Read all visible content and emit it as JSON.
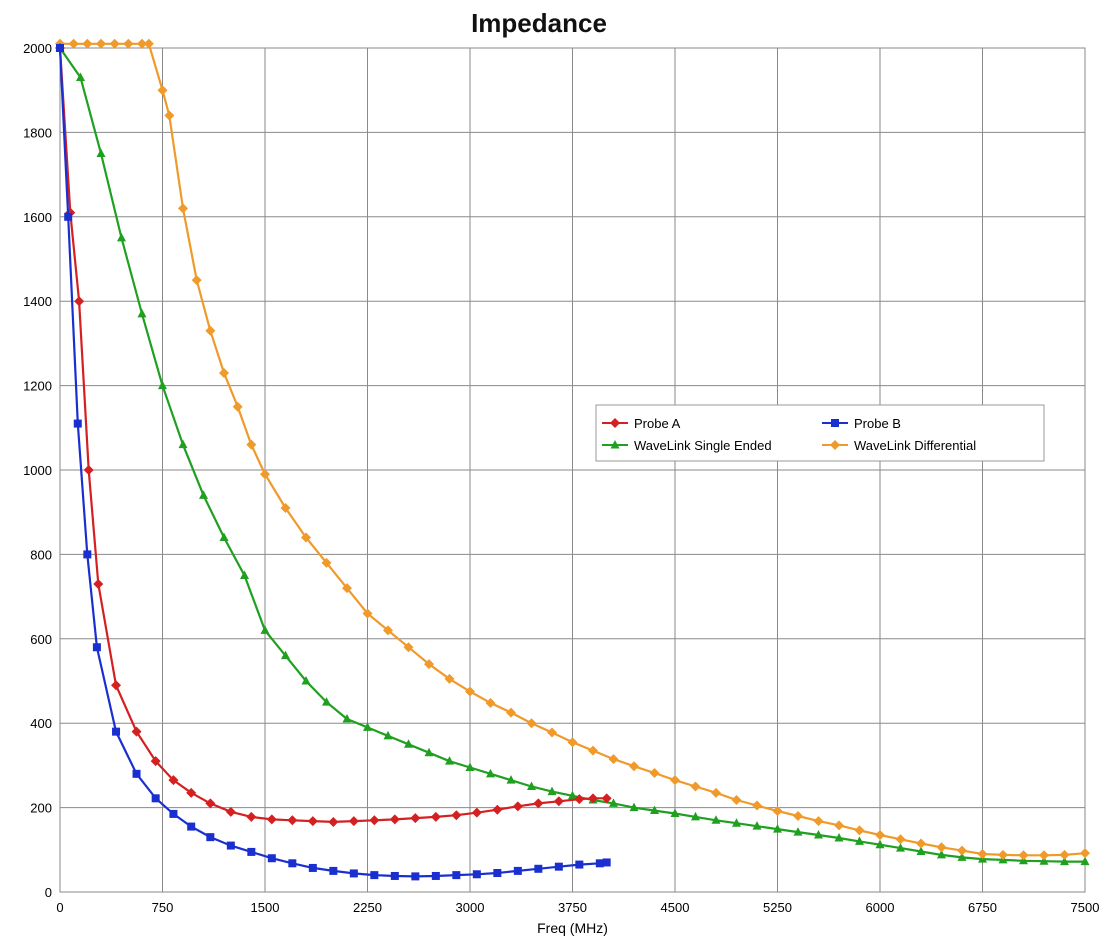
{
  "chart_data": {
    "type": "line",
    "title": "Impedance",
    "xlabel": "Freq (MHz)",
    "ylabel": "",
    "xlim": [
      0,
      7500
    ],
    "ylim": [
      0,
      2000
    ],
    "xticks": [
      0,
      750,
      1500,
      2250,
      3000,
      3750,
      4500,
      5250,
      6000,
      6750,
      7500
    ],
    "yticks": [
      0,
      200,
      400,
      600,
      800,
      1000,
      1200,
      1400,
      1600,
      1800,
      2000
    ],
    "grid": true,
    "legend_position": "center-right",
    "series": [
      {
        "name": "Probe A",
        "color": "#d42020",
        "marker": "diamond",
        "points": [
          [
            0,
            2000
          ],
          [
            75,
            1610
          ],
          [
            140,
            1400
          ],
          [
            210,
            1000
          ],
          [
            280,
            730
          ],
          [
            410,
            490
          ],
          [
            560,
            380
          ],
          [
            700,
            310
          ],
          [
            830,
            265
          ],
          [
            960,
            235
          ],
          [
            1100,
            210
          ],
          [
            1250,
            190
          ],
          [
            1400,
            178
          ],
          [
            1550,
            172
          ],
          [
            1700,
            170
          ],
          [
            1850,
            168
          ],
          [
            2000,
            166
          ],
          [
            2150,
            168
          ],
          [
            2300,
            170
          ],
          [
            2450,
            172
          ],
          [
            2600,
            175
          ],
          [
            2750,
            178
          ],
          [
            2900,
            182
          ],
          [
            3050,
            188
          ],
          [
            3200,
            195
          ],
          [
            3350,
            203
          ],
          [
            3500,
            210
          ],
          [
            3650,
            215
          ],
          [
            3800,
            220
          ],
          [
            3900,
            222
          ],
          [
            4000,
            222
          ]
        ]
      },
      {
        "name": "Probe B",
        "color": "#1a2fd0",
        "marker": "square",
        "points": [
          [
            0,
            2000
          ],
          [
            60,
            1600
          ],
          [
            130,
            1110
          ],
          [
            200,
            800
          ],
          [
            270,
            580
          ],
          [
            410,
            380
          ],
          [
            560,
            280
          ],
          [
            700,
            222
          ],
          [
            830,
            185
          ],
          [
            960,
            155
          ],
          [
            1100,
            130
          ],
          [
            1250,
            110
          ],
          [
            1400,
            95
          ],
          [
            1550,
            80
          ],
          [
            1700,
            68
          ],
          [
            1850,
            57
          ],
          [
            2000,
            50
          ],
          [
            2150,
            44
          ],
          [
            2300,
            40
          ],
          [
            2450,
            38
          ],
          [
            2600,
            37
          ],
          [
            2750,
            38
          ],
          [
            2900,
            40
          ],
          [
            3050,
            42
          ],
          [
            3200,
            45
          ],
          [
            3350,
            50
          ],
          [
            3500,
            55
          ],
          [
            3650,
            60
          ],
          [
            3800,
            65
          ],
          [
            3950,
            68
          ],
          [
            4000,
            70
          ]
        ]
      },
      {
        "name": "WaveLink Single Ended",
        "color": "#20a020",
        "marker": "triangle",
        "points": [
          [
            0,
            2000
          ],
          [
            150,
            1930
          ],
          [
            300,
            1750
          ],
          [
            450,
            1550
          ],
          [
            600,
            1370
          ],
          [
            750,
            1200
          ],
          [
            900,
            1060
          ],
          [
            1050,
            940
          ],
          [
            1200,
            840
          ],
          [
            1350,
            750
          ],
          [
            1500,
            620
          ],
          [
            1650,
            560
          ],
          [
            1800,
            500
          ],
          [
            1950,
            450
          ],
          [
            2100,
            410
          ],
          [
            2250,
            390
          ],
          [
            2400,
            370
          ],
          [
            2550,
            350
          ],
          [
            2700,
            330
          ],
          [
            2850,
            310
          ],
          [
            3000,
            295
          ],
          [
            3150,
            280
          ],
          [
            3300,
            265
          ],
          [
            3450,
            250
          ],
          [
            3600,
            238
          ],
          [
            3750,
            228
          ],
          [
            3900,
            218
          ],
          [
            4050,
            210
          ],
          [
            4200,
            200
          ],
          [
            4350,
            193
          ],
          [
            4500,
            186
          ],
          [
            4650,
            178
          ],
          [
            4800,
            170
          ],
          [
            4950,
            163
          ],
          [
            5100,
            156
          ],
          [
            5250,
            149
          ],
          [
            5400,
            142
          ],
          [
            5550,
            135
          ],
          [
            5700,
            128
          ],
          [
            5850,
            120
          ],
          [
            6000,
            112
          ],
          [
            6150,
            104
          ],
          [
            6300,
            96
          ],
          [
            6450,
            88
          ],
          [
            6600,
            82
          ],
          [
            6750,
            78
          ],
          [
            6900,
            76
          ],
          [
            7050,
            74
          ],
          [
            7200,
            73
          ],
          [
            7350,
            72
          ],
          [
            7500,
            72
          ]
        ]
      },
      {
        "name": "WaveLink Differential",
        "color": "#ef9a2a",
        "marker": "diamond",
        "points": [
          [
            0,
            2010
          ],
          [
            100,
            2010
          ],
          [
            200,
            2010
          ],
          [
            300,
            2010
          ],
          [
            400,
            2010
          ],
          [
            500,
            2010
          ],
          [
            600,
            2010
          ],
          [
            650,
            2010
          ],
          [
            750,
            1900
          ],
          [
            800,
            1840
          ],
          [
            900,
            1620
          ],
          [
            1000,
            1450
          ],
          [
            1100,
            1330
          ],
          [
            1200,
            1230
          ],
          [
            1300,
            1150
          ],
          [
            1400,
            1060
          ],
          [
            1500,
            990
          ],
          [
            1650,
            910
          ],
          [
            1800,
            840
          ],
          [
            1950,
            780
          ],
          [
            2100,
            720
          ],
          [
            2250,
            660
          ],
          [
            2400,
            620
          ],
          [
            2550,
            580
          ],
          [
            2700,
            540
          ],
          [
            2850,
            505
          ],
          [
            3000,
            475
          ],
          [
            3150,
            448
          ],
          [
            3300,
            425
          ],
          [
            3450,
            400
          ],
          [
            3600,
            378
          ],
          [
            3750,
            355
          ],
          [
            3900,
            335
          ],
          [
            4050,
            315
          ],
          [
            4200,
            298
          ],
          [
            4350,
            282
          ],
          [
            4500,
            265
          ],
          [
            4650,
            250
          ],
          [
            4800,
            235
          ],
          [
            4950,
            218
          ],
          [
            5100,
            205
          ],
          [
            5250,
            192
          ],
          [
            5400,
            180
          ],
          [
            5550,
            168
          ],
          [
            5700,
            158
          ],
          [
            5850,
            146
          ],
          [
            6000,
            135
          ],
          [
            6150,
            125
          ],
          [
            6300,
            115
          ],
          [
            6450,
            106
          ],
          [
            6600,
            98
          ],
          [
            6750,
            90
          ],
          [
            6900,
            88
          ],
          [
            7050,
            87
          ],
          [
            7200,
            87
          ],
          [
            7350,
            88
          ],
          [
            7500,
            92
          ]
        ]
      }
    ]
  }
}
